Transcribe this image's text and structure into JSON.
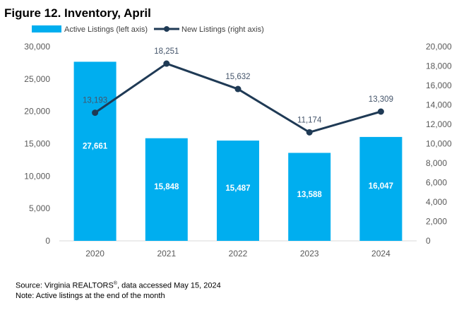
{
  "title": "Figure 12. Inventory, April",
  "source": {
    "prefix": "Source: Virginia REALTORS",
    "superscript": "®",
    "suffix": ", data accessed May 15, 2024"
  },
  "note": "Note: Active listings at the end of the month",
  "colors": {
    "bar": "#00aeef",
    "line": "#1f3a55",
    "gridline": "#d9d9d9"
  },
  "chart_data": {
    "type": "bar+line",
    "categories": [
      "2020",
      "2021",
      "2022",
      "2023",
      "2024"
    ],
    "series": [
      {
        "name": "Active Listings (left axis)",
        "type": "bar",
        "axis": "left",
        "values": [
          27661,
          15848,
          15487,
          13588,
          16047
        ],
        "labels": [
          "27,661",
          "15,848",
          "15,487",
          "13,588",
          "16,047"
        ]
      },
      {
        "name": "New Listings (right axis)",
        "type": "line",
        "axis": "right",
        "values": [
          13193,
          18251,
          15632,
          11174,
          13309
        ],
        "labels": [
          "13,193",
          "18,251",
          "15,632",
          "11,174",
          "13,309"
        ]
      }
    ],
    "left_axis": {
      "range": [
        0,
        30000
      ],
      "ticks": [
        "0",
        "5,000",
        "10,000",
        "15,000",
        "20,000",
        "25,000",
        "30,000"
      ]
    },
    "right_axis": {
      "range": [
        0,
        20000
      ],
      "ticks": [
        "0",
        "2,000",
        "4,000",
        "6,000",
        "8,000",
        "10,000",
        "12,000",
        "14,000",
        "16,000",
        "18,000",
        "20,000"
      ]
    },
    "grid": false,
    "legend_position": "top-left"
  }
}
